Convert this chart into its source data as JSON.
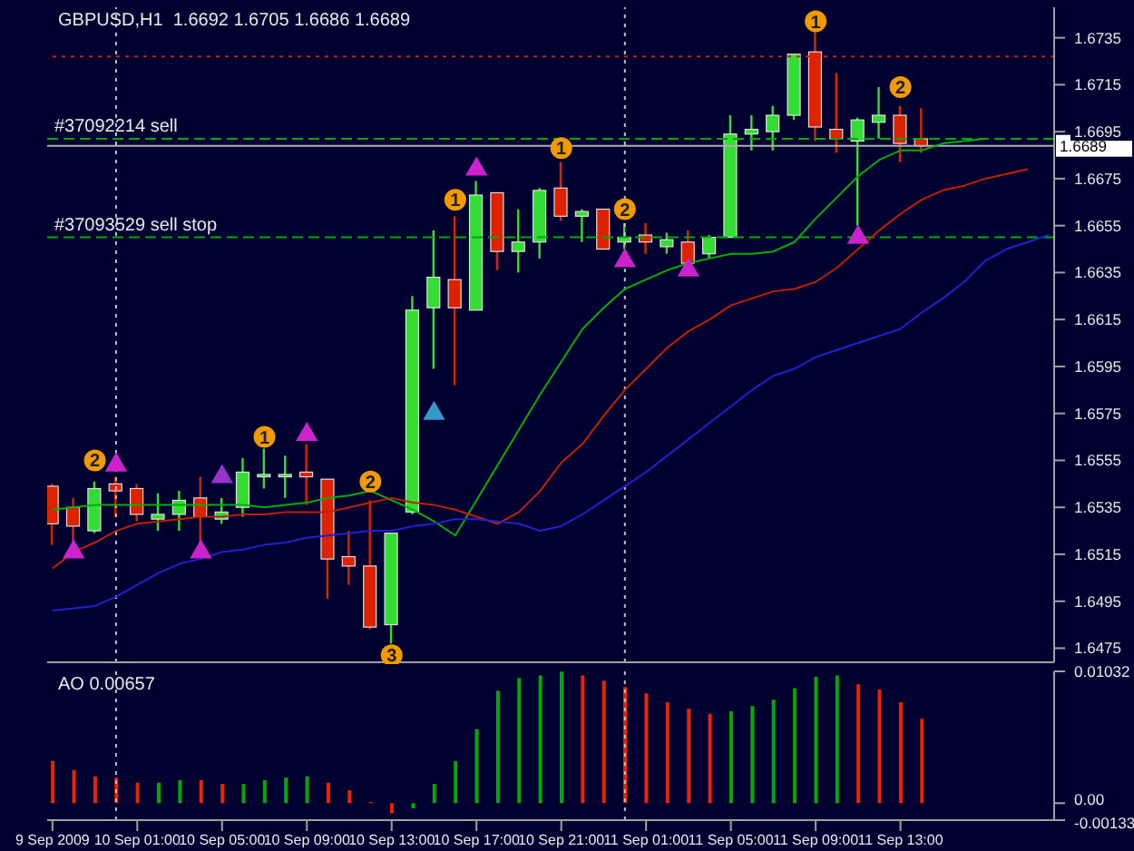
{
  "chart_data": [
    {
      "type": "candlestick",
      "title": "GBPUSD,H1  1.6692 1.6705 1.6686 1.6689",
      "x": [
        "2009-09-09T21:00",
        "2009-09-09T22:00",
        "2009-09-09T23:00",
        "2009-09-10T00:00",
        "2009-09-10T01:00",
        "2009-09-10T02:00",
        "2009-09-10T03:00",
        "2009-09-10T04:00",
        "2009-09-10T05:00",
        "2009-09-10T06:00",
        "2009-09-10T07:00",
        "2009-09-10T08:00",
        "2009-09-10T09:00",
        "2009-09-10T10:00",
        "2009-09-10T11:00",
        "2009-09-10T12:00",
        "2009-09-10T13:00",
        "2009-09-10T14:00",
        "2009-09-10T15:00",
        "2009-09-10T16:00",
        "2009-09-10T17:00",
        "2009-09-10T18:00",
        "2009-09-10T19:00",
        "2009-09-10T20:00",
        "2009-09-10T21:00",
        "2009-09-10T22:00",
        "2009-09-10T23:00",
        "2009-09-11T00:00",
        "2009-09-11T01:00",
        "2009-09-11T02:00",
        "2009-09-11T03:00",
        "2009-09-11T04:00",
        "2009-09-11T05:00",
        "2009-09-11T06:00",
        "2009-09-11T07:00",
        "2009-09-11T08:00",
        "2009-09-11T09:00",
        "2009-09-11T10:00",
        "2009-09-11T11:00",
        "2009-09-11T12:00",
        "2009-09-11T13:00",
        "2009-09-11T14:00"
      ],
      "ohlc": [
        [
          1.6544,
          1.6545,
          1.6519,
          1.6528
        ],
        [
          1.6535,
          1.6539,
          1.652,
          1.6527
        ],
        [
          1.6525,
          1.6546,
          1.6524,
          1.6543
        ],
        [
          1.6545,
          1.6548,
          1.6531,
          1.6542
        ],
        [
          1.6543,
          1.6545,
          1.6529,
          1.6532
        ],
        [
          1.653,
          1.6541,
          1.6525,
          1.6532
        ],
        [
          1.6532,
          1.6542,
          1.6525,
          1.6538
        ],
        [
          1.6539,
          1.6548,
          1.6519,
          1.6531
        ],
        [
          1.653,
          1.6539,
          1.6528,
          1.6533
        ],
        [
          1.6535,
          1.6556,
          1.6531,
          1.655
        ],
        [
          1.6548,
          1.656,
          1.6543,
          1.6549
        ],
        [
          1.6548,
          1.6557,
          1.6539,
          1.6549
        ],
        [
          1.655,
          1.6562,
          1.6536,
          1.6548
        ],
        [
          1.6547,
          1.6547,
          1.6496,
          1.6513
        ],
        [
          1.6514,
          1.6525,
          1.6502,
          1.651
        ],
        [
          1.651,
          1.6538,
          1.6483,
          1.6484
        ],
        [
          1.6485,
          1.6524,
          1.6477,
          1.6524
        ],
        [
          1.6533,
          1.6625,
          1.6532,
          1.6619
        ],
        [
          1.662,
          1.6653,
          1.6594,
          1.6633
        ],
        [
          1.6632,
          1.6659,
          1.6587,
          1.662
        ],
        [
          1.6619,
          1.6674,
          1.6619,
          1.6668
        ],
        [
          1.6669,
          1.6669,
          1.6636,
          1.6644
        ],
        [
          1.6644,
          1.6662,
          1.6635,
          1.6648
        ],
        [
          1.6648,
          1.6671,
          1.6641,
          1.667
        ],
        [
          1.6671,
          1.6682,
          1.6657,
          1.6659
        ],
        [
          1.6659,
          1.6662,
          1.6648,
          1.6661
        ],
        [
          1.6662,
          1.6662,
          1.6645,
          1.6645
        ],
        [
          1.6648,
          1.6656,
          1.6645,
          1.665
        ],
        [
          1.6651,
          1.6656,
          1.6643,
          1.6648
        ],
        [
          1.6646,
          1.6652,
          1.6643,
          1.6649
        ],
        [
          1.6648,
          1.6653,
          1.6639,
          1.6639
        ],
        [
          1.6643,
          1.6651,
          1.6641,
          1.665
        ],
        [
          1.665,
          1.6702,
          1.665,
          1.6694
        ],
        [
          1.6694,
          1.6702,
          1.6687,
          1.6696
        ],
        [
          1.6695,
          1.6706,
          1.6687,
          1.6702
        ],
        [
          1.6702,
          1.6728,
          1.67,
          1.6728
        ],
        [
          1.6729,
          1.6738,
          1.6691,
          1.6697
        ],
        [
          1.6696,
          1.672,
          1.6686,
          1.6692
        ],
        [
          1.6691,
          1.6701,
          1.6655,
          1.67
        ],
        [
          1.6699,
          1.6714,
          1.6692,
          1.6702
        ],
        [
          1.6702,
          1.6706,
          1.6682,
          1.669
        ],
        [
          1.6692,
          1.6705,
          1.6686,
          1.6689
        ]
      ],
      "colors": [
        "#dd2200",
        "#dd2200",
        "#33dd33",
        "#dd2200",
        "#dd2200",
        "#33dd33",
        "#33dd33",
        "#dd2200",
        "#33dd33",
        "#33dd33",
        "#33dd33",
        "#33dd33",
        "#dd2200",
        "#dd2200",
        "#dd2200",
        "#dd2200",
        "#33dd33",
        "#33dd33",
        "#33dd33",
        "#dd2200",
        "#33dd33",
        "#dd2200",
        "#33dd33",
        "#33dd33",
        "#dd2200",
        "#33dd33",
        "#dd2200",
        "#33dd33",
        "#dd2200",
        "#33dd33",
        "#dd2200",
        "#33dd33",
        "#33dd33",
        "#33dd33",
        "#33dd33",
        "#33dd33",
        "#dd2200",
        "#dd2200",
        "#33dd33",
        "#33dd33",
        "#dd2200",
        "#dd2200"
      ],
      "series": [
        {
          "type": "line",
          "color": "#00b000",
          "x": [
            "2009-09-09T21:00",
            "2009-09-09T22:00",
            "2009-09-09T23:00",
            "2009-09-10T00:00",
            "2009-09-10T01:00",
            "2009-09-10T02:00",
            "2009-09-10T03:00",
            "2009-09-10T04:00",
            "2009-09-10T05:00",
            "2009-09-10T06:00",
            "2009-09-10T07:00",
            "2009-09-10T08:00",
            "2009-09-10T09:00",
            "2009-09-10T10:00",
            "2009-09-10T11:00",
            "2009-09-10T12:00",
            "2009-09-10T13:00",
            "2009-09-10T14:00",
            "2009-09-10T15:00",
            "2009-09-10T16:00",
            "2009-09-10T17:00",
            "2009-09-10T18:00",
            "2009-09-10T19:00",
            "2009-09-10T20:00",
            "2009-09-10T21:00",
            "2009-09-10T22:00",
            "2009-09-10T23:00",
            "2009-09-11T00:00",
            "2009-09-11T01:00",
            "2009-09-11T02:00",
            "2009-09-11T03:00",
            "2009-09-11T04:00",
            "2009-09-11T05:00",
            "2009-09-11T06:00",
            "2009-09-11T07:00",
            "2009-09-11T08:00",
            "2009-09-11T09:00",
            "2009-09-11T10:00",
            "2009-09-11T11:00",
            "2009-09-11T12:00",
            "2009-09-11T13:00",
            "2009-09-11T14:00",
            "2009-09-11T15:00",
            "2009-09-11T16:00",
            "2009-09-11T17:00"
          ],
          "values": [
            1.6534,
            1.6535,
            1.6536,
            1.6536,
            1.6536,
            1.6536,
            1.6536,
            1.6536,
            1.6536,
            1.6536,
            1.6535,
            1.6536,
            1.6537,
            1.6539,
            1.654,
            1.6542,
            1.6538,
            1.6534,
            1.6529,
            1.6523,
            1.6538,
            1.6553,
            1.6568,
            1.6583,
            1.6597,
            1.6611,
            1.662,
            1.6628,
            1.6632,
            1.6636,
            1.6639,
            1.6641,
            1.6643,
            1.6643,
            1.6644,
            1.6648,
            1.6658,
            1.6667,
            1.6676,
            1.6683,
            1.6687,
            1.6687,
            1.669,
            1.6691,
            1.6692
          ]
        },
        {
          "type": "line",
          "color": "#c02000",
          "x": [
            "2009-09-09T21:00",
            "2009-09-09T22:00",
            "2009-09-09T23:00",
            "2009-09-10T00:00",
            "2009-09-10T01:00",
            "2009-09-10T02:00",
            "2009-09-10T03:00",
            "2009-09-10T04:00",
            "2009-09-10T05:00",
            "2009-09-10T06:00",
            "2009-09-10T07:00",
            "2009-09-10T08:00",
            "2009-09-10T09:00",
            "2009-09-10T10:00",
            "2009-09-10T11:00",
            "2009-09-10T12:00",
            "2009-09-10T13:00",
            "2009-09-10T14:00",
            "2009-09-10T15:00",
            "2009-09-10T16:00",
            "2009-09-10T17:00",
            "2009-09-10T18:00",
            "2009-09-10T19:00",
            "2009-09-10T20:00",
            "2009-09-10T21:00",
            "2009-09-10T22:00",
            "2009-09-10T23:00",
            "2009-09-11T00:00",
            "2009-09-11T01:00",
            "2009-09-11T02:00",
            "2009-09-11T03:00",
            "2009-09-11T04:00",
            "2009-09-11T05:00",
            "2009-09-11T06:00",
            "2009-09-11T07:00",
            "2009-09-11T08:00",
            "2009-09-11T09:00",
            "2009-09-11T10:00",
            "2009-09-11T11:00",
            "2009-09-11T12:00",
            "2009-09-11T13:00",
            "2009-09-11T14:00",
            "2009-09-11T15:00",
            "2009-09-11T16:00",
            "2009-09-11T17:00",
            "2009-09-11T18:00",
            "2009-09-11T19:00"
          ],
          "values": [
            1.6509,
            1.6516,
            1.652,
            1.6525,
            1.6528,
            1.6529,
            1.653,
            1.6531,
            1.6531,
            1.6532,
            1.6532,
            1.6533,
            1.6533,
            1.6533,
            1.6535,
            1.6537,
            1.6539,
            1.6537,
            1.6536,
            1.6534,
            1.6531,
            1.6528,
            1.6533,
            1.6542,
            1.6554,
            1.6562,
            1.6574,
            1.6585,
            1.6594,
            1.6603,
            1.661,
            1.6615,
            1.6621,
            1.6624,
            1.6627,
            1.6628,
            1.6631,
            1.6637,
            1.6645,
            1.6653,
            1.666,
            1.6666,
            1.667,
            1.6672,
            1.6675,
            1.6677,
            1.6679
          ]
        },
        {
          "type": "line",
          "color": "#2020d0",
          "x": [
            "2009-09-09T21:00",
            "2009-09-09T22:00",
            "2009-09-09T23:00",
            "2009-09-10T00:00",
            "2009-09-10T01:00",
            "2009-09-10T02:00",
            "2009-09-10T03:00",
            "2009-09-10T04:00",
            "2009-09-10T05:00",
            "2009-09-10T06:00",
            "2009-09-10T07:00",
            "2009-09-10T08:00",
            "2009-09-10T09:00",
            "2009-09-10T10:00",
            "2009-09-10T11:00",
            "2009-09-10T12:00",
            "2009-09-10T13:00",
            "2009-09-10T14:00",
            "2009-09-10T15:00",
            "2009-09-10T16:00",
            "2009-09-10T17:00",
            "2009-09-10T18:00",
            "2009-09-10T19:00",
            "2009-09-10T20:00",
            "2009-09-10T21:00",
            "2009-09-10T22:00",
            "2009-09-10T23:00",
            "2009-09-11T00:00",
            "2009-09-11T01:00",
            "2009-09-11T02:00",
            "2009-09-11T03:00",
            "2009-09-11T04:00",
            "2009-09-11T05:00",
            "2009-09-11T06:00",
            "2009-09-11T07:00",
            "2009-09-11T08:00",
            "2009-09-11T09:00",
            "2009-09-11T10:00",
            "2009-09-11T11:00",
            "2009-09-11T12:00",
            "2009-09-11T13:00",
            "2009-09-11T14:00",
            "2009-09-11T15:00",
            "2009-09-11T16:00",
            "2009-09-11T17:00",
            "2009-09-11T18:00",
            "2009-09-11T19:00",
            "2009-09-11T20:00"
          ],
          "values": [
            1.6491,
            1.6492,
            1.6493,
            1.6497,
            1.6502,
            1.6507,
            1.6511,
            1.6513,
            1.6516,
            1.6517,
            1.6519,
            1.652,
            1.6522,
            1.6523,
            1.6524,
            1.6525,
            1.6525,
            1.6527,
            1.6528,
            1.653,
            1.653,
            1.6529,
            1.6528,
            1.6525,
            1.6527,
            1.6532,
            1.6538,
            1.6544,
            1.655,
            1.6557,
            1.6564,
            1.6571,
            1.6578,
            1.6585,
            1.6591,
            1.6594,
            1.6599,
            1.6602,
            1.6605,
            1.6608,
            1.6611,
            1.6618,
            1.6624,
            1.6631,
            1.664,
            1.6645,
            1.6648,
            1.6651
          ]
        },
        {
          "type": "scatter",
          "color": "#cc22cc",
          "marker": "triangle",
          "x": [
            "2009-09-10T00:00",
            "2009-09-10T09:00",
            "2009-09-10T17:00"
          ],
          "values": [
            1.6553,
            1.6566,
            1.6679
          ]
        },
        {
          "type": "scatter",
          "color": "#cc22cc",
          "marker": "triangle",
          "x": [
            "2009-09-09T22:00",
            "2009-09-10T04:00",
            "2009-09-11T00:00",
            "2009-09-11T03:00",
            "2009-09-11T11:00"
          ],
          "values": [
            1.6516,
            1.6516,
            1.664,
            1.6636,
            1.665
          ]
        },
        {
          "type": "scatter",
          "color": "#9933cc",
          "marker": "triangle",
          "x": [
            "2009-09-10T05:00"
          ],
          "values": [
            1.6548
          ]
        },
        {
          "type": "scatter",
          "color": "#3399cc",
          "marker": "triangle",
          "x": [
            "2009-09-10T15:00"
          ],
          "values": [
            1.6575
          ]
        }
      ],
      "xlim": [
        "2009-09-09T20:45",
        "2009-09-11T20:15"
      ],
      "ylim": [
        1.6469,
        1.6748
      ],
      "yticks": [
        1.6475,
        1.6495,
        1.6515,
        1.6535,
        1.6555,
        1.6575,
        1.6595,
        1.6615,
        1.6635,
        1.6655,
        1.6675,
        1.6695,
        1.6715,
        1.6735
      ],
      "tick_labels": "y",
      "ref_lines": [
        {
          "axis": "y",
          "value": 1.6727,
          "color": "#cc2200",
          "line_style": "dotted"
        },
        {
          "axis": "y",
          "value": 1.6692,
          "label": "#37092214 sell",
          "color": "#00aa00",
          "line_style": "dashed"
        },
        {
          "axis": "y",
          "value": 1.665,
          "label": "#37093529 sell stop",
          "color": "#00aa00",
          "line_style": "dashed"
        },
        {
          "axis": "y",
          "value": 1.6689,
          "label": "1.6689",
          "color": "#b0b0b0",
          "line_style": "solid"
        },
        {
          "axis": "x",
          "value": "2009-09-10T00:00",
          "color": "#c0c0c0",
          "line_style": "dotted"
        },
        {
          "axis": "x",
          "value": "2009-09-11T00:00",
          "color": "#c0c0c0",
          "line_style": "dotted"
        }
      ],
      "annotations": [
        {
          "text": "2",
          "x": "2009-09-09T23:00",
          "y": 1.6555
        },
        {
          "text": "1",
          "x": "2009-09-10T07:00",
          "y": 1.6565
        },
        {
          "text": "2",
          "x": "2009-09-10T12:00",
          "y": 1.6546
        },
        {
          "text": "3",
          "x": "2009-09-10T13:00",
          "y": 1.6472
        },
        {
          "text": "1",
          "x": "2009-09-10T16:00",
          "y": 1.6666
        },
        {
          "text": "1",
          "x": "2009-09-10T21:00",
          "y": 1.6688
        },
        {
          "text": "2",
          "x": "2009-09-11T00:00",
          "y": 1.6662
        },
        {
          "text": "1",
          "x": "2009-09-11T09:00",
          "y": 1.6742
        },
        {
          "text": "2",
          "x": "2009-09-11T13:00",
          "y": 1.6714
        }
      ]
    },
    {
      "type": "bar",
      "title": "AO 0.00657",
      "x": [
        "2009-09-09T21:00",
        "2009-09-09T22:00",
        "2009-09-09T23:00",
        "2009-09-10T00:00",
        "2009-09-10T01:00",
        "2009-09-10T02:00",
        "2009-09-10T03:00",
        "2009-09-10T04:00",
        "2009-09-10T05:00",
        "2009-09-10T06:00",
        "2009-09-10T07:00",
        "2009-09-10T08:00",
        "2009-09-10T09:00",
        "2009-09-10T10:00",
        "2009-09-10T11:00",
        "2009-09-10T12:00",
        "2009-09-10T13:00",
        "2009-09-10T14:00",
        "2009-09-10T15:00",
        "2009-09-10T16:00",
        "2009-09-10T17:00",
        "2009-09-10T18:00",
        "2009-09-10T19:00",
        "2009-09-10T20:00",
        "2009-09-10T21:00",
        "2009-09-10T22:00",
        "2009-09-10T23:00",
        "2009-09-11T00:00",
        "2009-09-11T01:00",
        "2009-09-11T02:00",
        "2009-09-11T03:00",
        "2009-09-11T04:00",
        "2009-09-11T05:00",
        "2009-09-11T06:00",
        "2009-09-11T07:00",
        "2009-09-11T08:00",
        "2009-09-11T09:00",
        "2009-09-11T10:00",
        "2009-09-11T11:00",
        "2009-09-11T12:00",
        "2009-09-11T13:00",
        "2009-09-11T14:00"
      ],
      "values": [
        0.0033,
        0.0026,
        0.0021,
        0.002,
        0.0016,
        0.0016,
        0.0018,
        0.0018,
        0.0015,
        0.0015,
        0.0018,
        0.002,
        0.0021,
        0.0016,
        0.001,
        0.0001,
        -0.0008,
        -0.0004,
        0.0015,
        0.0033,
        0.0058,
        0.0088,
        0.0098,
        0.01,
        0.0103,
        0.01,
        0.0096,
        0.0091,
        0.0086,
        0.0079,
        0.0074,
        0.007,
        0.0072,
        0.0076,
        0.0081,
        0.009,
        0.0099,
        0.01,
        0.0093,
        0.0089,
        0.0079,
        0.0066
      ],
      "colors": [
        "#ee2200",
        "#ee2200",
        "#ee2200",
        "#ee2200",
        "#ee2200",
        "#00aa00",
        "#00aa00",
        "#ee2200",
        "#ee2200",
        "#00aa00",
        "#00aa00",
        "#00aa00",
        "#00aa00",
        "#ee2200",
        "#ee2200",
        "#ee2200",
        "#ee2200",
        "#00aa00",
        "#00aa00",
        "#00aa00",
        "#00aa00",
        "#00aa00",
        "#00aa00",
        "#00aa00",
        "#00aa00",
        "#ee2200",
        "#ee2200",
        "#ee2200",
        "#ee2200",
        "#ee2200",
        "#ee2200",
        "#ee2200",
        "#00aa00",
        "#00aa00",
        "#00aa00",
        "#00aa00",
        "#00aa00",
        "#00aa00",
        "#ee2200",
        "#ee2200",
        "#ee2200",
        "#ee2200"
      ],
      "xlim": [
        "2009-09-09T20:45",
        "2009-09-11T20:15"
      ],
      "xticks": [
        {
          "value": "2009-09-09T21:00",
          "label": "9 Sep 2009"
        },
        {
          "value": "2009-09-10T01:00",
          "label": "10 Sep 01:00"
        },
        {
          "value": "2009-09-10T05:00",
          "label": "10 Sep 05:00"
        },
        {
          "value": "2009-09-10T09:00",
          "label": "10 Sep 09:00"
        },
        {
          "value": "2009-09-10T13:00",
          "label": "10 Sep 13:00"
        },
        {
          "value": "2009-09-10T17:00",
          "label": "10 Sep 17:00"
        },
        {
          "value": "2009-09-10T21:00",
          "label": "10 Sep 21:00"
        },
        {
          "value": "2009-09-11T01:00",
          "label": "11 Sep 01:00"
        },
        {
          "value": "2009-09-11T05:00",
          "label": "11 Sep 05:00"
        },
        {
          "value": "2009-09-11T09:00",
          "label": "11 Sep 09:00"
        },
        {
          "value": "2009-09-11T13:00",
          "label": "11 Sep 13:00"
        }
      ],
      "ylim": [
        -0.00133,
        0.01032
      ],
      "yticks": [
        0.01032,
        {
          "value": 0,
          "label": "0.00"
        },
        -0.00133
      ],
      "ref_lines": [
        {
          "axis": "x",
          "value": "2009-09-10T00:00",
          "color": "#c0c0c0",
          "line_style": "dotted"
        },
        {
          "axis": "x",
          "value": "2009-09-11T00:00",
          "color": "#c0c0c0",
          "line_style": "dotted"
        }
      ]
    }
  ]
}
